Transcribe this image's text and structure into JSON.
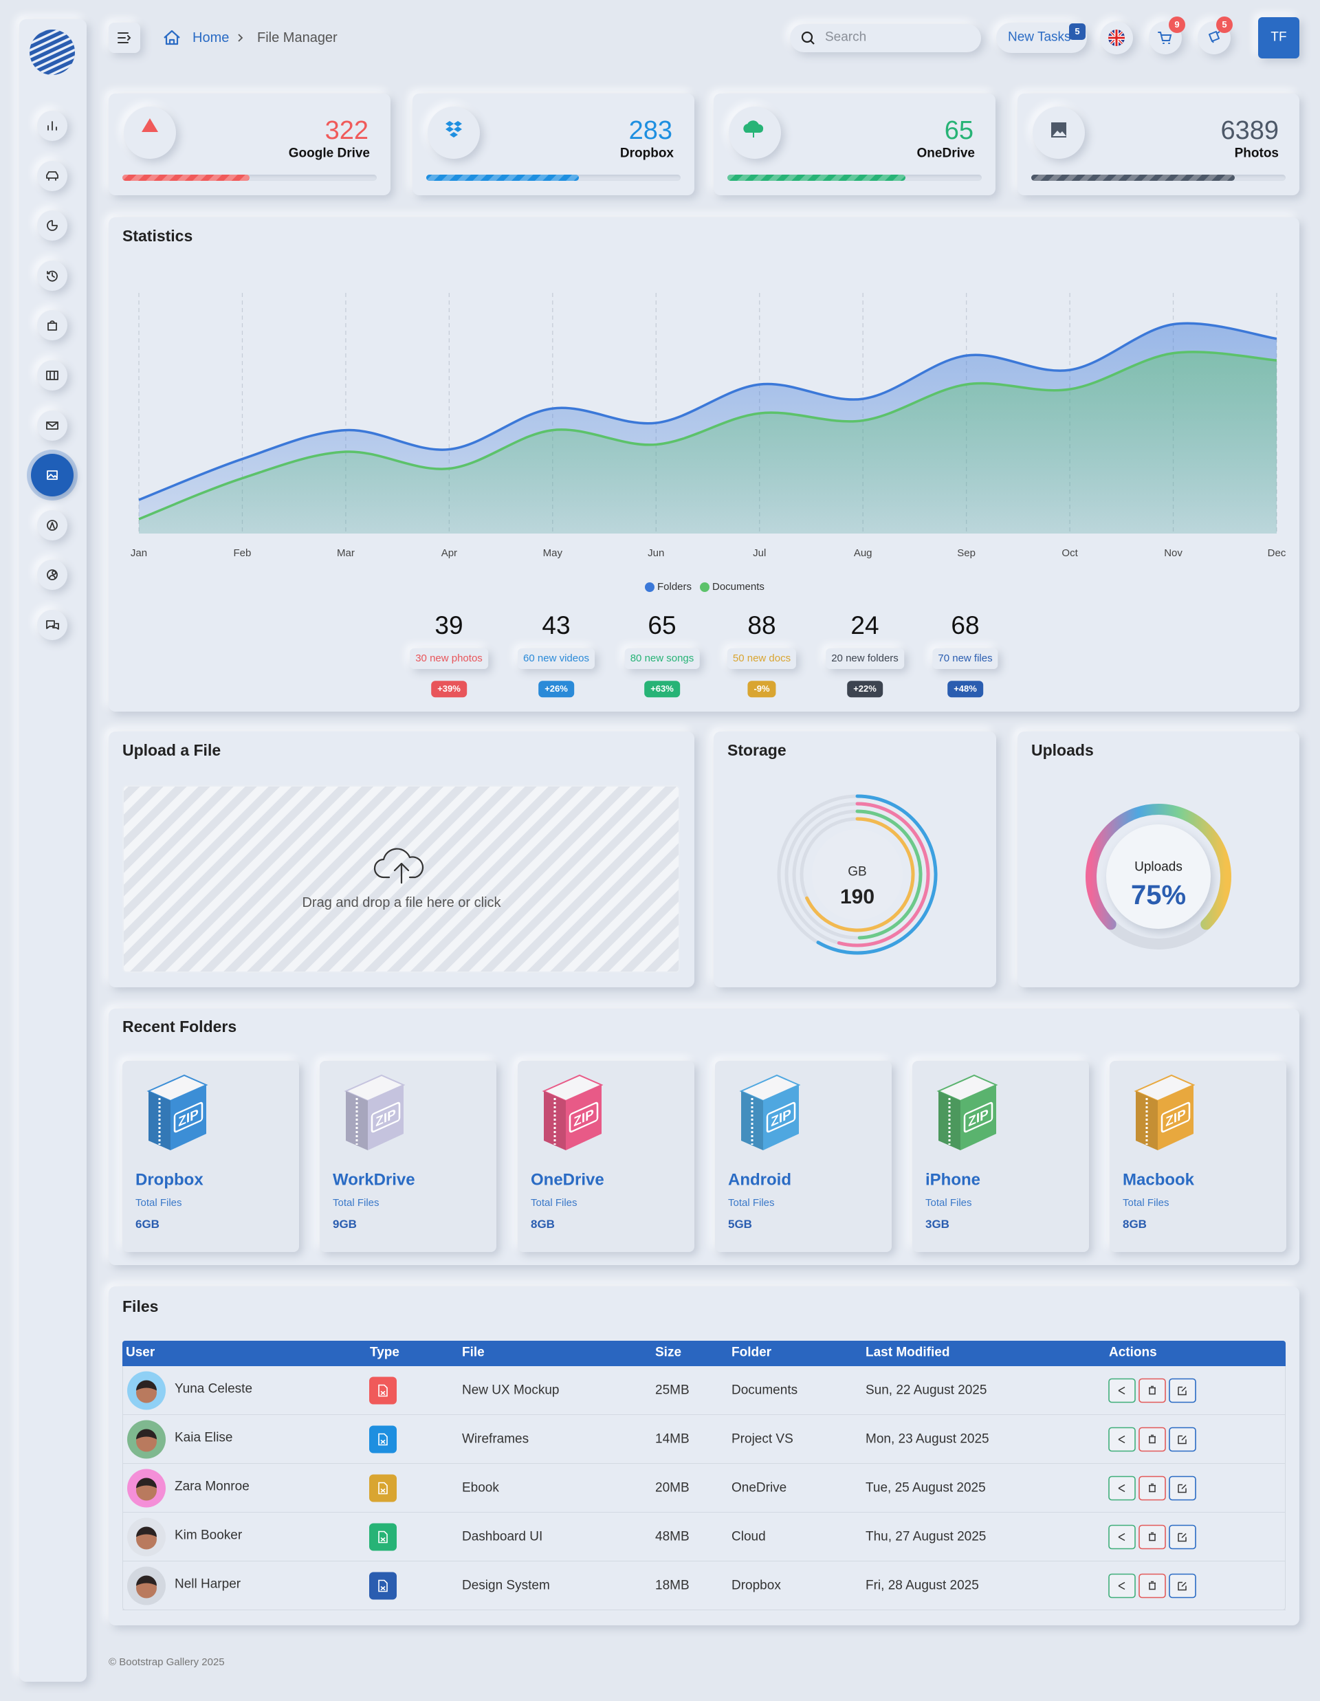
{
  "header": {
    "breadcrumb": [
      "Home",
      "File Manager"
    ],
    "search_placeholder": "Search",
    "new_tasks": "New Tasks",
    "new_tasks_count": 5,
    "cart_count": 9,
    "notifications_count": 5,
    "user_initials": "TF"
  },
  "stat_cards": [
    {
      "value": 322,
      "label": "Google Drive",
      "color": "#f05a5a"
    },
    {
      "value": 283,
      "label": "Dropbox",
      "color": "#1e8fe0"
    },
    {
      "value": 65,
      "label": "OneDrive",
      "color": "#27b376"
    },
    {
      "value": 6389,
      "label": "Photos",
      "color": "#4d5868"
    }
  ],
  "chart_data": {
    "type": "area",
    "title": "Statistics",
    "categories": [
      "Jan",
      "Feb",
      "Mar",
      "Apr",
      "May",
      "Jun",
      "Jul",
      "Aug",
      "Sep",
      "Oct",
      "Nov",
      "Dec"
    ],
    "series": [
      {
        "name": "Folders",
        "color": "#3b78d8",
        "values": [
          14,
          31,
          43,
          35,
          52,
          46,
          62,
          56,
          74,
          68,
          87,
          81
        ]
      },
      {
        "name": "Documents",
        "color": "#5cc26a",
        "values": [
          6,
          23,
          34,
          27,
          43,
          37,
          50,
          47,
          62,
          60,
          75,
          72
        ]
      }
    ]
  },
  "summary": [
    {
      "value": 39,
      "label": "30 new photos",
      "change": "+39%",
      "color": "#e8555a"
    },
    {
      "value": 43,
      "label": "60 new videos",
      "change": "+26%",
      "color": "#2a8ad8"
    },
    {
      "value": 65,
      "label": "80 new songs",
      "change": "+63%",
      "color": "#27b376"
    },
    {
      "value": 88,
      "label": "50 new docs",
      "change": "-9%",
      "color": "#d9a531"
    },
    {
      "value": 24,
      "label": "20 new folders",
      "change": "+22%",
      "color": "#3d4450"
    },
    {
      "value": 68,
      "label": "70 new files",
      "change": "+48%",
      "color": "#2a5db0"
    }
  ],
  "upload": {
    "title": "Upload a File",
    "prompt": "Drag and drop a file here or click"
  },
  "storage": {
    "title": "Storage",
    "unit": "GB",
    "value": 190
  },
  "uploads": {
    "title": "Uploads",
    "label": "Uploads",
    "value": 75,
    "value_label": "75%"
  },
  "recent_folders": {
    "title": "Recent Folders",
    "icon_label": "ZIP",
    "items": [
      {
        "name": "Dropbox",
        "caption": "Total Files",
        "size": "6GB",
        "color": "#3c8ed6"
      },
      {
        "name": "WorkDrive",
        "caption": "Total Files",
        "size": "9GB",
        "color": "#c5c3de"
      },
      {
        "name": "OneDrive",
        "caption": "Total Files",
        "size": "8GB",
        "color": "#e85a87"
      },
      {
        "name": "Android",
        "caption": "Total Files",
        "size": "5GB",
        "color": "#4fa7e0"
      },
      {
        "name": "iPhone",
        "caption": "Total Files",
        "size": "3GB",
        "color": "#5ab36e"
      },
      {
        "name": "Macbook",
        "caption": "Total Files",
        "size": "8GB",
        "color": "#e8a83e"
      }
    ]
  },
  "files": {
    "title": "Files",
    "columns": [
      "User",
      "Type",
      "File",
      "Size",
      "Folder",
      "Last Modified",
      "Actions"
    ],
    "rows": [
      {
        "user": "Yuna Celeste",
        "avatar_color": "#8fd0f5",
        "type_color": "#f05a5a",
        "file": "New UX Mockup",
        "size": "25MB",
        "folder": "Documents",
        "modified": "Sun, 22 August 2025"
      },
      {
        "user": "Kaia Elise",
        "avatar_color": "#7fb88f",
        "type_color": "#1e8fe0",
        "file": "Wireframes",
        "size": "14MB",
        "folder": "Project VS",
        "modified": "Mon, 23 August 2025"
      },
      {
        "user": "Zara Monroe",
        "avatar_color": "#f48fd8",
        "type_color": "#d9a531",
        "file": "Ebook",
        "size": "20MB",
        "folder": "OneDrive",
        "modified": "Tue, 25 August 2025"
      },
      {
        "user": "Kim Booker",
        "avatar_color": "#dfe3ea",
        "type_color": "#27b376",
        "file": "Dashboard UI",
        "size": "48MB",
        "folder": "Cloud",
        "modified": "Thu, 27 August 2025"
      },
      {
        "user": "Nell Harper",
        "avatar_color": "#d3d8e0",
        "type_color": "#2a5db0",
        "file": "Design System",
        "size": "18MB",
        "folder": "Dropbox",
        "modified": "Fri, 28 August 2025"
      }
    ]
  },
  "footer": "© Bootstrap Gallery 2025"
}
